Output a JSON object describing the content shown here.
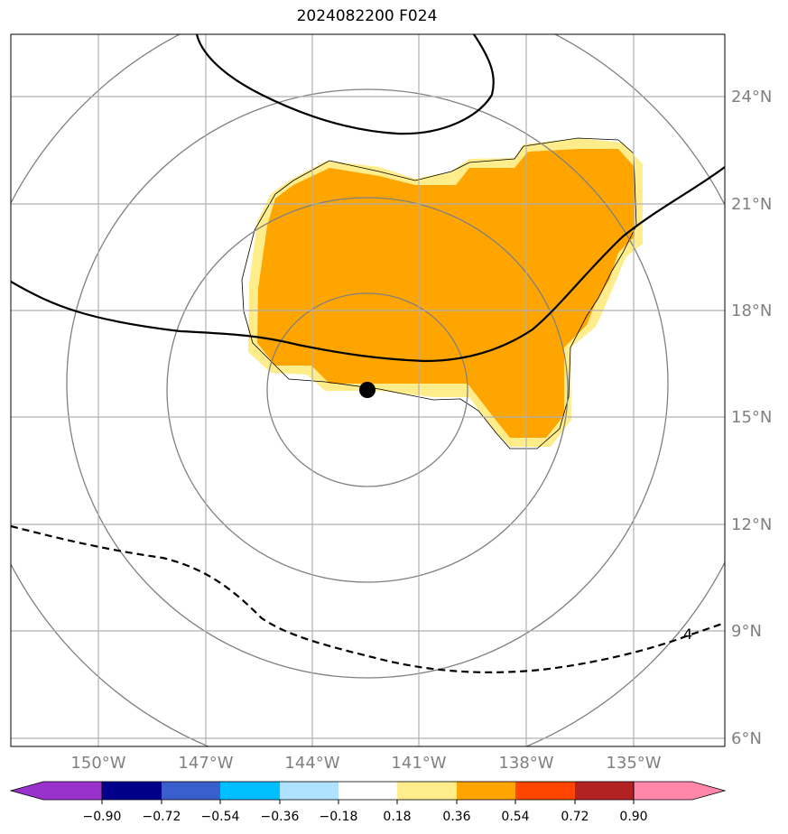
{
  "title": "2024082200 F024",
  "map": {
    "lat_labels": [
      "24°N",
      "21°N",
      "18°N",
      "15°N",
      "12°N",
      "9°N",
      "6°N"
    ],
    "lon_labels": [
      "150°W",
      "147°W",
      "144°W",
      "141°W",
      "138°W",
      "135°W"
    ],
    "contour_label": "4",
    "storm_center": {
      "lat": 15.8,
      "lon": -142.2
    }
  },
  "colorbar": {
    "ticks": [
      "−0.90",
      "−0.72",
      "−0.54",
      "−0.36",
      "−0.18",
      "0.18",
      "0.36",
      "0.54",
      "0.72",
      "0.90"
    ],
    "colors": [
      "#9932cc",
      "#00008b",
      "#3a5fcd",
      "#00bfff",
      "#b0e2ff",
      "#ffffff",
      "#ffec8b",
      "#ffa500",
      "#ff4500",
      "#b22222",
      "#ff88aa"
    ]
  }
}
